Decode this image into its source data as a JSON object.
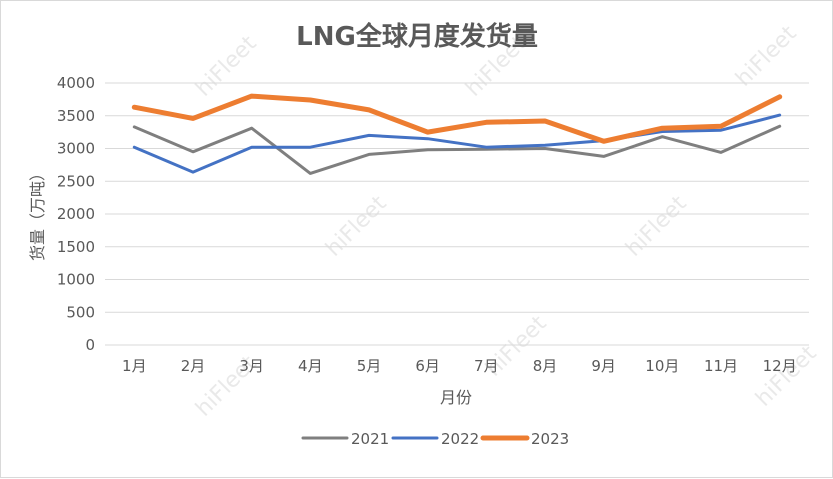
{
  "chart_data": {
    "type": "line",
    "title": "LNG全球月度发货量",
    "xlabel": "月份",
    "ylabel": "货量（万吨）",
    "categories": [
      "1月",
      "2月",
      "3月",
      "4月",
      "5月",
      "6月",
      "7月",
      "8月",
      "9月",
      "10月",
      "11月",
      "12月"
    ],
    "ylim": [
      0,
      4000
    ],
    "yticks": [
      0,
      500,
      1000,
      1500,
      2000,
      2500,
      3000,
      3500,
      4000
    ],
    "grid": true,
    "legend_position": "bottom",
    "series": [
      {
        "name": "2021",
        "color": "#7f7f7f",
        "values": [
          3330,
          2950,
          3310,
          2620,
          2910,
          2980,
          2990,
          3000,
          2880,
          3180,
          2940,
          3340
        ]
      },
      {
        "name": "2022",
        "color": "#4472c4",
        "values": [
          3020,
          2640,
          3020,
          3020,
          3200,
          3150,
          3020,
          3050,
          3120,
          3260,
          3280,
          3510
        ]
      },
      {
        "name": "2023",
        "color": "#ed7d31",
        "values": [
          3630,
          3460,
          3800,
          3740,
          3590,
          3250,
          3400,
          3420,
          3110,
          3310,
          3340,
          3790
        ]
      }
    ]
  },
  "watermark": {
    "text": "hiFleet"
  }
}
